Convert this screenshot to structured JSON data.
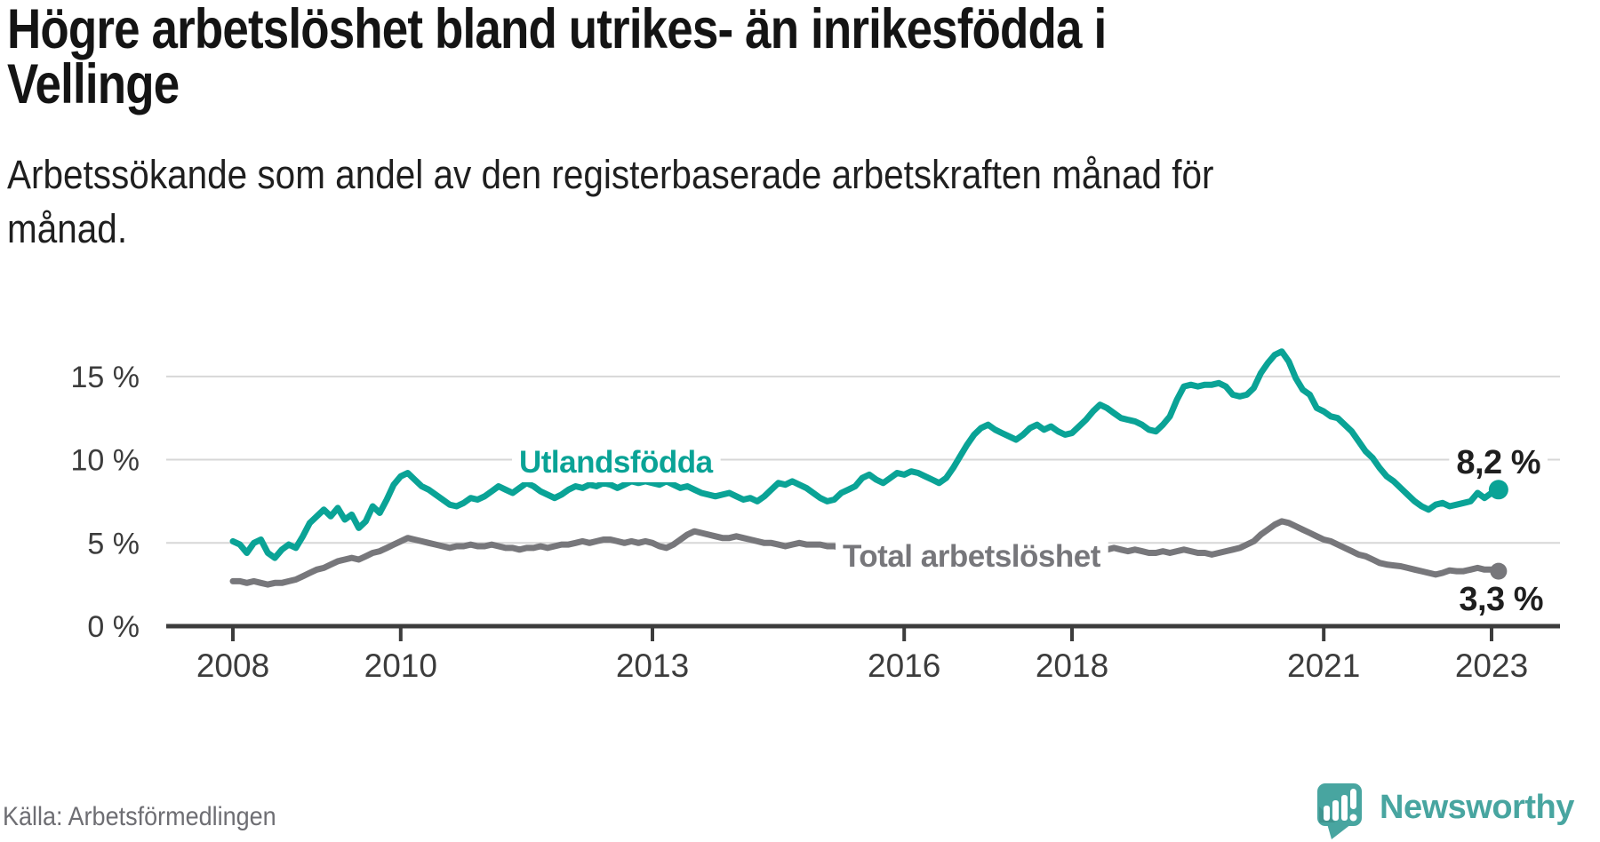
{
  "header": {
    "title": "Högre arbetslöshet bland utrikes- än inrikesfödda i Vellinge",
    "title_lines": [
      "Högre arbetslöshet bland utrikes- än inrikesfödda i",
      "Vellinge"
    ],
    "subtitle": "Arbetssökande som andel av den registerbaserade arbetskraften månad för månad.",
    "subtitle_lines": [
      "Arbetssökande som andel av den registerbaserade arbetskraften månad för",
      "månad."
    ]
  },
  "footer": {
    "source": "Källa: Arbetsförmedlingen"
  },
  "brand": {
    "name": "Newsworthy",
    "icon": "speech-bubble-bar-chart-icon"
  },
  "colors": {
    "foreign_born_line": "#0aa396",
    "total_line": "#77777b",
    "grid": "#d7d7d7",
    "axis": "#3c3c3c",
    "tick_text": "#3c3c3c",
    "value_text": "#1f1f1f",
    "muted_text": "#6e6e73",
    "brand_teal": "#48a5a0"
  },
  "chart_data": {
    "type": "line",
    "title": "Högre arbetslöshet bland utrikes- än inrikesfödda i Vellinge",
    "subtitle": "Arbetssökande som andel av den registerbaserade arbetskraften månad för månad.",
    "unit": "%",
    "frequency": "monthly",
    "x_start": "2008-01",
    "x_end": "2023-02",
    "x_ticks": [
      2008,
      2010,
      2013,
      2016,
      2018,
      2021,
      2023
    ],
    "y_ticks": [
      "0 %",
      "5 %",
      "10 %",
      "15 %"
    ],
    "y_tick_values": [
      0,
      5,
      10,
      15
    ],
    "ylim": [
      0,
      17.5
    ],
    "grid": "horizontal",
    "legend_position": "inline-labels",
    "series": [
      {
        "name": "Utlandsfödda",
        "color": "#0aa396",
        "end_label": "8,2 %",
        "end_value": 8.2,
        "values": [
          5.1,
          4.9,
          4.4,
          5.0,
          5.2,
          4.4,
          4.1,
          4.6,
          4.9,
          4.7,
          5.4,
          6.2,
          6.6,
          7.0,
          6.6,
          7.1,
          6.4,
          6.7,
          5.9,
          6.3,
          7.2,
          6.8,
          7.6,
          8.5,
          9.0,
          9.2,
          8.8,
          8.4,
          8.2,
          7.9,
          7.6,
          7.3,
          7.2,
          7.4,
          7.7,
          7.6,
          7.8,
          8.1,
          8.4,
          8.2,
          8.0,
          8.3,
          8.6,
          8.4,
          8.1,
          7.9,
          7.7,
          7.9,
          8.2,
          8.4,
          8.3,
          8.5,
          8.4,
          8.6,
          8.5,
          8.3,
          8.5,
          8.7,
          8.6,
          8.7,
          8.6,
          8.5,
          8.7,
          8.5,
          8.3,
          8.4,
          8.2,
          8.0,
          7.9,
          7.8,
          7.9,
          8.0,
          7.8,
          7.6,
          7.7,
          7.5,
          7.8,
          8.2,
          8.6,
          8.5,
          8.7,
          8.5,
          8.3,
          8.0,
          7.7,
          7.5,
          7.6,
          8.0,
          8.2,
          8.4,
          8.9,
          9.1,
          8.8,
          8.6,
          8.9,
          9.2,
          9.1,
          9.3,
          9.2,
          9.0,
          8.8,
          8.6,
          8.9,
          9.5,
          10.2,
          10.9,
          11.5,
          11.9,
          12.1,
          11.8,
          11.6,
          11.4,
          11.2,
          11.5,
          11.9,
          12.1,
          11.8,
          12.0,
          11.7,
          11.5,
          11.6,
          12.0,
          12.4,
          12.9,
          13.3,
          13.1,
          12.8,
          12.5,
          12.4,
          12.3,
          12.1,
          11.8,
          11.7,
          12.1,
          12.6,
          13.6,
          14.4,
          14.5,
          14.4,
          14.5,
          14.5,
          14.6,
          14.4,
          13.9,
          13.8,
          13.9,
          14.3,
          15.2,
          15.8,
          16.3,
          16.5,
          15.9,
          14.9,
          14.2,
          13.9,
          13.1,
          12.9,
          12.6,
          12.5,
          12.1,
          11.7,
          11.1,
          10.5,
          10.1,
          9.5,
          9.0,
          8.7,
          8.3,
          7.9,
          7.5,
          7.2,
          7.0,
          7.3,
          7.4,
          7.2,
          7.3,
          7.4,
          7.5,
          8.0,
          7.7,
          8.0,
          8.2
        ]
      },
      {
        "name": "Total arbetslöshet",
        "color": "#77777b",
        "end_label": "3,3 %",
        "end_value": 3.3,
        "values": [
          2.7,
          2.7,
          2.6,
          2.7,
          2.6,
          2.5,
          2.6,
          2.6,
          2.7,
          2.8,
          3.0,
          3.2,
          3.4,
          3.5,
          3.7,
          3.9,
          4.0,
          4.1,
          4.0,
          4.2,
          4.4,
          4.5,
          4.7,
          4.9,
          5.1,
          5.3,
          5.2,
          5.1,
          5.0,
          4.9,
          4.8,
          4.7,
          4.8,
          4.8,
          4.9,
          4.8,
          4.8,
          4.9,
          4.8,
          4.7,
          4.7,
          4.6,
          4.7,
          4.7,
          4.8,
          4.7,
          4.8,
          4.9,
          4.9,
          5.0,
          5.1,
          5.0,
          5.1,
          5.2,
          5.2,
          5.1,
          5.0,
          5.1,
          5.0,
          5.1,
          5.0,
          4.8,
          4.7,
          4.9,
          5.2,
          5.5,
          5.7,
          5.6,
          5.5,
          5.4,
          5.3,
          5.3,
          5.4,
          5.3,
          5.2,
          5.1,
          5.0,
          5.0,
          4.9,
          4.8,
          4.9,
          5.0,
          4.9,
          4.9,
          4.9,
          4.8,
          4.8,
          4.7,
          4.7,
          4.6,
          4.6,
          4.5,
          4.6,
          4.7,
          4.6,
          4.6,
          4.6,
          4.5,
          4.4,
          4.3,
          4.4,
          4.5,
          4.4,
          4.5,
          4.6,
          4.5,
          4.6,
          4.7,
          4.7,
          4.8,
          4.9,
          4.8,
          4.9,
          5.0,
          4.9,
          4.8,
          4.8,
          4.9,
          4.8,
          4.9,
          4.9,
          4.8,
          4.7,
          4.8,
          4.7,
          4.6,
          4.7,
          4.6,
          4.5,
          4.6,
          4.5,
          4.4,
          4.4,
          4.5,
          4.4,
          4.5,
          4.6,
          4.5,
          4.4,
          4.4,
          4.3,
          4.4,
          4.5,
          4.6,
          4.7,
          4.9,
          5.1,
          5.5,
          5.8,
          6.1,
          6.3,
          6.2,
          6.0,
          5.8,
          5.6,
          5.4,
          5.2,
          5.1,
          4.9,
          4.7,
          4.5,
          4.3,
          4.2,
          4.0,
          3.8,
          3.7,
          3.65,
          3.6,
          3.5,
          3.4,
          3.3,
          3.2,
          3.1,
          3.2,
          3.35,
          3.3,
          3.3,
          3.4,
          3.5,
          3.4,
          3.4,
          3.3
        ]
      }
    ]
  }
}
